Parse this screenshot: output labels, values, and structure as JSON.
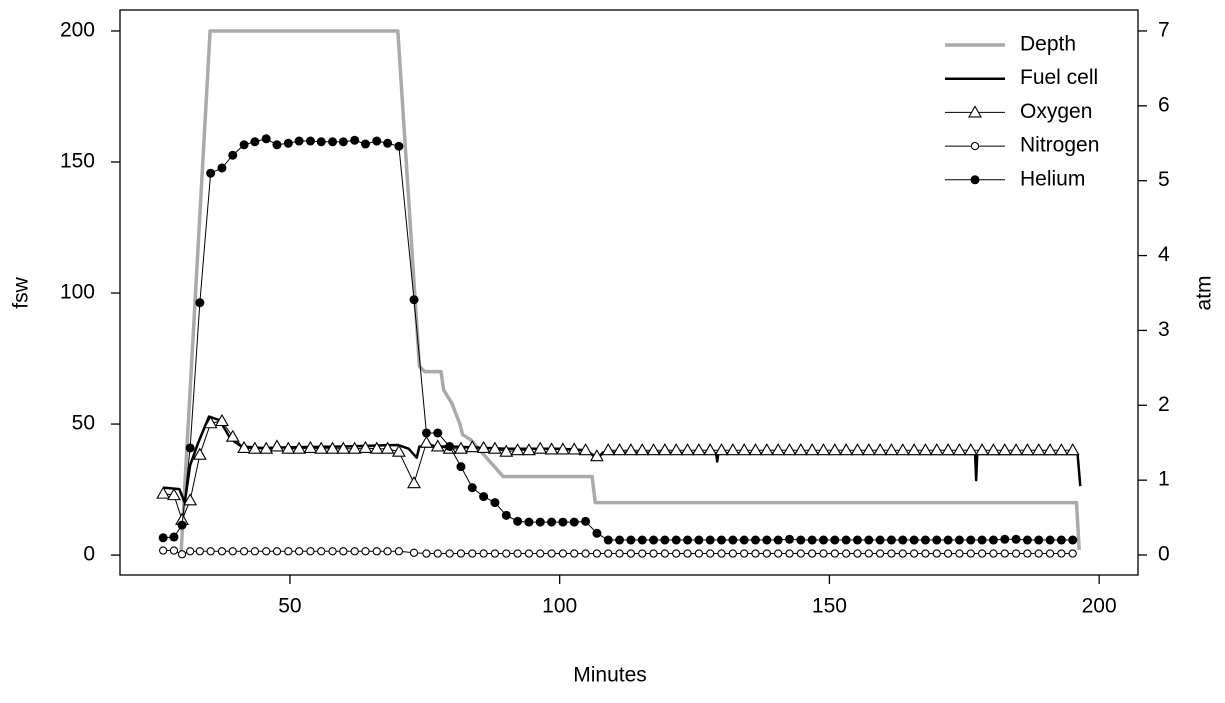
{
  "chart_data": {
    "type": "line",
    "xlabel": "Minutes",
    "ylabel": "fsw",
    "y2label": "atm",
    "xlim": [
      18.5,
      207.2
    ],
    "ylim": [
      -7.6,
      208
    ],
    "y2lim": [
      -0.267,
      7.28
    ],
    "xticks": [
      50,
      100,
      150,
      200
    ],
    "yticks": [
      0,
      50,
      100,
      150,
      200
    ],
    "y2ticks": [
      0,
      1,
      2,
      3,
      4,
      5,
      6,
      7
    ],
    "legend": "top-right",
    "x": [
      26.5,
      28.5,
      30,
      31.5,
      33.3,
      35.3,
      37.4,
      39.4,
      41.5,
      43.5,
      45.6,
      47.6,
      49.7,
      51.7,
      53.8,
      55.8,
      57.9,
      59.9,
      62,
      64,
      66.1,
      68.1,
      70.2,
      73,
      75.3,
      77.4,
      79.6,
      81.7,
      83.8,
      85.9,
      88,
      90.1,
      92.2,
      94.3,
      96.4,
      98.5,
      100.6,
      102.7,
      104.8,
      106.9,
      109,
      111.1,
      113.2,
      115.3,
      117.4,
      119.5,
      121.6,
      123.7,
      125.8,
      127.9,
      130,
      132.1,
      134.2,
      136.3,
      138.4,
      140.5,
      142.6,
      144.7,
      146.8,
      148.9,
      151,
      153.1,
      155.2,
      157.3,
      159.4,
      161.5,
      163.6,
      165.7,
      167.8,
      169.9,
      172,
      174.1,
      176.2,
      178.3,
      180.4,
      182.5,
      184.6,
      186.7,
      188.8,
      190.9,
      193,
      195.1
    ],
    "series": [
      {
        "name": "Depth",
        "color": "#aaaaaa",
        "marker": "none",
        "line_width": 3.5,
        "x": [
          29.8,
          35.2,
          70,
          74,
          75,
          78,
          78.5,
          80,
          81.5,
          82,
          83.5,
          89.5,
          106,
          106.6,
          195.8,
          196.3
        ],
        "values": [
          0,
          200,
          200,
          72,
          70,
          70,
          63,
          58,
          50,
          46,
          44,
          30,
          30,
          20,
          20,
          2
        ]
      },
      {
        "name": "Fuel cell",
        "color": "#000000",
        "marker": "none",
        "line_width": 2.5,
        "axis": "y2",
        "x": [
          26.5,
          29.5,
          30.5,
          31.5,
          33,
          35,
          37,
          39,
          41,
          45,
          50,
          60,
          70,
          72,
          73.5,
          74,
          80,
          90,
          100,
          105,
          107,
          108,
          129,
          129.2,
          129.4,
          177,
          177.2,
          177.4,
          196,
          196.5
        ],
        "values": [
          0.9,
          0.88,
          0.7,
          1.2,
          1.5,
          1.85,
          1.8,
          1.55,
          1.45,
          1.43,
          1.44,
          1.45,
          1.47,
          1.42,
          1.3,
          1.45,
          1.45,
          1.42,
          1.42,
          1.4,
          1.28,
          1.37,
          1.36,
          1.25,
          1.36,
          1.35,
          1.0,
          1.35,
          1.35,
          0.92
        ]
      },
      {
        "name": "Oxygen",
        "color": "#000000",
        "marker": "triangle",
        "line_width": 1,
        "axis": "y2",
        "values": [
          0.82,
          0.8,
          0.47,
          0.73,
          1.34,
          1.76,
          1.79,
          1.58,
          1.43,
          1.42,
          1.42,
          1.45,
          1.42,
          1.42,
          1.43,
          1.42,
          1.42,
          1.42,
          1.42,
          1.43,
          1.42,
          1.42,
          1.38,
          0.96,
          1.5,
          1.45,
          1.42,
          1.42,
          1.44,
          1.43,
          1.42,
          1.38,
          1.4,
          1.4,
          1.42,
          1.41,
          1.41,
          1.41,
          1.4,
          1.32,
          1.4,
          1.4,
          1.4,
          1.4,
          1.4,
          1.4,
          1.4,
          1.4,
          1.4,
          1.4,
          1.4,
          1.4,
          1.4,
          1.4,
          1.4,
          1.4,
          1.4,
          1.4,
          1.4,
          1.4,
          1.4,
          1.4,
          1.4,
          1.4,
          1.4,
          1.4,
          1.4,
          1.4,
          1.4,
          1.4,
          1.4,
          1.4,
          1.4,
          1.4,
          1.4,
          1.4,
          1.4,
          1.4,
          1.4,
          1.4,
          1.4,
          1.4
        ]
      },
      {
        "name": "Nitrogen",
        "color": "#000000",
        "marker": "circle-open",
        "line_width": 1,
        "axis": "y2",
        "values": [
          0.06,
          0.06,
          0.01,
          0.05,
          0.05,
          0.05,
          0.05,
          0.05,
          0.05,
          0.05,
          0.05,
          0.05,
          0.05,
          0.05,
          0.05,
          0.05,
          0.05,
          0.05,
          0.05,
          0.05,
          0.05,
          0.05,
          0.05,
          0.03,
          0.02,
          0.02,
          0.02,
          0.02,
          0.02,
          0.02,
          0.02,
          0.02,
          0.02,
          0.02,
          0.02,
          0.02,
          0.02,
          0.02,
          0.02,
          0.02,
          0.02,
          0.02,
          0.02,
          0.02,
          0.02,
          0.02,
          0.02,
          0.02,
          0.02,
          0.02,
          0.02,
          0.02,
          0.02,
          0.02,
          0.02,
          0.02,
          0.02,
          0.02,
          0.02,
          0.02,
          0.02,
          0.02,
          0.02,
          0.02,
          0.02,
          0.02,
          0.02,
          0.02,
          0.02,
          0.02,
          0.02,
          0.02,
          0.02,
          0.02,
          0.02,
          0.02,
          0.02,
          0.02,
          0.02,
          0.02,
          0.02,
          0.02
        ]
      },
      {
        "name": "Helium",
        "color": "#000000",
        "marker": "circle-filled",
        "line_width": 1,
        "axis": "y2",
        "values": [
          0.23,
          0.24,
          0.4,
          1.43,
          3.37,
          5.1,
          5.17,
          5.34,
          5.48,
          5.52,
          5.56,
          5.48,
          5.5,
          5.53,
          5.53,
          5.52,
          5.52,
          5.52,
          5.54,
          5.49,
          5.53,
          5.5,
          5.46,
          3.41,
          1.63,
          1.63,
          1.45,
          1.18,
          0.9,
          0.78,
          0.7,
          0.53,
          0.45,
          0.44,
          0.44,
          0.44,
          0.44,
          0.44,
          0.45,
          0.29,
          0.2,
          0.2,
          0.2,
          0.2,
          0.2,
          0.2,
          0.2,
          0.2,
          0.2,
          0.2,
          0.2,
          0.2,
          0.2,
          0.2,
          0.2,
          0.2,
          0.21,
          0.2,
          0.2,
          0.2,
          0.2,
          0.2,
          0.2,
          0.2,
          0.2,
          0.2,
          0.2,
          0.2,
          0.2,
          0.2,
          0.2,
          0.2,
          0.2,
          0.2,
          0.2,
          0.21,
          0.21,
          0.2,
          0.2,
          0.2,
          0.2,
          0.2
        ]
      }
    ]
  }
}
